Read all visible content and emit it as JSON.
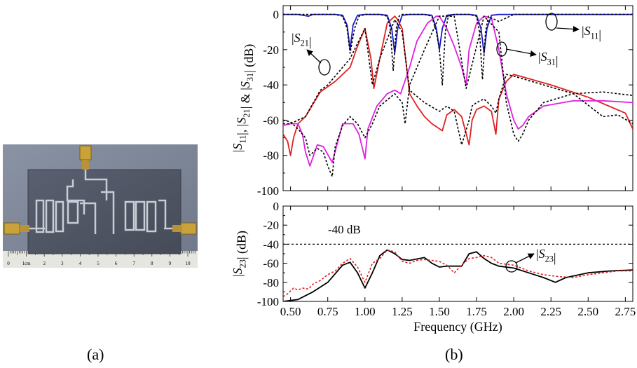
{
  "captions": {
    "a": "(a)",
    "b": "(b)"
  },
  "photo": {
    "ruler_labels": [
      "0",
      "1cm",
      "2",
      "3",
      "4",
      "5",
      "6",
      "7",
      "8",
      "9",
      "10"
    ]
  },
  "chart_data": [
    {
      "type": "line",
      "ylabel": "|S11|, |S21| & |S31| (dB)",
      "xlim": [
        0.45,
        2.8
      ],
      "ylim": [
        -100,
        5
      ],
      "yticks": [
        0,
        -20,
        -40,
        -60,
        -80,
        -100
      ],
      "xticks": [
        0.5,
        0.75,
        1.0,
        1.25,
        1.5,
        1.75,
        2.0,
        2.25,
        2.5,
        2.75
      ],
      "annotations": [
        "|S21|",
        "|S31|",
        "|S11|"
      ],
      "colors": {
        "s11": "#1a1acc",
        "s21": "#e02020",
        "s31": "#e020e0",
        "measured": "#000000"
      },
      "series": [
        {
          "id": "s11",
          "x": [
            0.45,
            0.55,
            0.62,
            0.65,
            0.7,
            0.8,
            0.85,
            0.88,
            0.9,
            0.92,
            0.95,
            1.0,
            1.1,
            1.15,
            1.18,
            1.2,
            1.22,
            1.25,
            1.3,
            1.4,
            1.45,
            1.48,
            1.5,
            1.52,
            1.55,
            1.6,
            1.7,
            1.75,
            1.78,
            1.8,
            1.82,
            1.85,
            1.9,
            2.0,
            2.8
          ],
          "y": [
            0,
            0,
            -1,
            0,
            0,
            0,
            -0.5,
            -6,
            -20,
            -6,
            -0.5,
            0,
            0,
            -0.5,
            -8,
            -22,
            -8,
            -0.5,
            0,
            0,
            -0.5,
            -8,
            -20,
            -8,
            -0.5,
            0,
            0,
            -0.5,
            -8,
            -22,
            -8,
            -0.5,
            0,
            0,
            0
          ]
        },
        {
          "id": "s21",
          "x": [
            0.45,
            0.48,
            0.5,
            0.52,
            0.55,
            0.6,
            0.7,
            0.8,
            0.9,
            0.95,
            1.0,
            1.04,
            1.06,
            1.1,
            1.15,
            1.2,
            1.22,
            1.25,
            1.3,
            1.35,
            1.4,
            1.45,
            1.52,
            1.55,
            1.6,
            1.65,
            1.7,
            1.72,
            1.75,
            1.8,
            1.85,
            1.88,
            1.9,
            1.95,
            2.0,
            2.25,
            2.5,
            2.75,
            2.8
          ],
          "y": [
            -68,
            -72,
            -80,
            -70,
            -62,
            -58,
            -44,
            -38,
            -30,
            -18,
            -8,
            -25,
            -42,
            -25,
            -5,
            -1,
            -3,
            -8,
            -45,
            -52,
            -58,
            -62,
            -66,
            -57,
            -54,
            -58,
            -74,
            -60,
            -54,
            -52,
            -55,
            -68,
            -48,
            -38,
            -34,
            -40,
            -47,
            -56,
            -65
          ]
        },
        {
          "id": "s31",
          "x": [
            0.45,
            0.5,
            0.55,
            0.58,
            0.6,
            0.63,
            0.68,
            0.72,
            0.78,
            0.85,
            0.92,
            0.96,
            1.0,
            1.02,
            1.08,
            1.15,
            1.2,
            1.24,
            1.3,
            1.35,
            1.42,
            1.48,
            1.5,
            1.55,
            1.6,
            1.65,
            1.68,
            1.7,
            1.75,
            1.8,
            1.85,
            1.9,
            1.95,
            2.0,
            2.03,
            2.06,
            2.1,
            2.2,
            2.4,
            2.6,
            2.8
          ],
          "y": [
            -63,
            -62,
            -62,
            -68,
            -78,
            -86,
            -74,
            -75,
            -84,
            -62,
            -62,
            -68,
            -82,
            -65,
            -52,
            -45,
            -43,
            -45,
            -30,
            -15,
            -5,
            -1,
            -1,
            -8,
            -18,
            -30,
            -40,
            -20,
            -5,
            -1,
            -2,
            -20,
            -45,
            -60,
            -65,
            -63,
            -58,
            -52,
            -49,
            -49,
            -50
          ]
        },
        {
          "id": "s11_meas",
          "dashed": true,
          "x": [
            0.45,
            0.7,
            0.8,
            0.85,
            0.88,
            0.9,
            0.93,
            0.96,
            1.0,
            1.1,
            1.15,
            1.17,
            1.19,
            1.21,
            1.23,
            1.25,
            1.3,
            1.4,
            1.45,
            1.48,
            1.5,
            1.52,
            1.54,
            1.56,
            1.6,
            1.7,
            1.75,
            1.77,
            1.79,
            1.81,
            1.83,
            1.85,
            1.9,
            2.0,
            2.8
          ],
          "y": [
            0,
            0,
            0,
            -1,
            -8,
            -22,
            -8,
            -1,
            0,
            0,
            -1,
            -8,
            -32,
            -8,
            -1,
            0,
            0,
            0,
            -1,
            -10,
            -20,
            -40,
            -10,
            -1,
            0,
            0,
            -1,
            -10,
            -37,
            -10,
            -1,
            -2,
            -4,
            0,
            0
          ]
        },
        {
          "id": "s21_meas",
          "dashed": true,
          "x": [
            0.45,
            0.5,
            0.55,
            0.6,
            0.7,
            0.75,
            0.8,
            0.9,
            1.0,
            1.05,
            1.1,
            1.2,
            1.25,
            1.3,
            1.4,
            1.5,
            1.55,
            1.6,
            1.65,
            1.7,
            1.72,
            1.75,
            1.8,
            1.85,
            1.88,
            1.9,
            1.95,
            2.0,
            2.2,
            2.4,
            2.6,
            2.7,
            2.8
          ],
          "y": [
            -62,
            -62,
            -60,
            -58,
            -43,
            -40,
            -35,
            -25,
            -8,
            -40,
            -25,
            -3,
            -10,
            -43,
            -50,
            -55,
            -52,
            -55,
            -74,
            -60,
            -52,
            -50,
            -48,
            -52,
            -56,
            -48,
            -34,
            -35,
            -40,
            -45,
            -58,
            -57,
            -62
          ]
        },
        {
          "id": "s31_meas",
          "dashed": true,
          "x": [
            0.45,
            0.5,
            0.55,
            0.6,
            0.63,
            0.68,
            0.72,
            0.75,
            0.78,
            0.8,
            0.85,
            0.9,
            0.95,
            1.0,
            1.05,
            1.1,
            1.2,
            1.25,
            1.27,
            1.3,
            1.4,
            1.5,
            1.6,
            1.68,
            1.8,
            1.9,
            1.95,
            2.0,
            2.03,
            2.06,
            2.1,
            2.2,
            2.4,
            2.6,
            2.7,
            2.8
          ],
          "y": [
            -60,
            -61,
            -65,
            -70,
            -80,
            -76,
            -78,
            -86,
            -92,
            -75,
            -63,
            -58,
            -62,
            -70,
            -62,
            -52,
            -45,
            -50,
            -62,
            -40,
            -20,
            -1,
            -1,
            -42,
            -1,
            -10,
            -50,
            -68,
            -72,
            -68,
            -60,
            -50,
            -45,
            -44,
            -45,
            -46
          ]
        }
      ]
    },
    {
      "type": "line",
      "xlabel": "Frequency (GHz)",
      "ylabel": "|S23| (dB)",
      "xlim": [
        0.45,
        2.8
      ],
      "ylim": [
        -100,
        0
      ],
      "yticks": [
        0,
        -20,
        -40,
        -60,
        -80,
        -100
      ],
      "xticks": [
        0.5,
        0.75,
        1.0,
        1.25,
        1.5,
        1.75,
        2.0,
        2.25,
        2.5,
        2.75
      ],
      "xtick_labels": [
        "0.50",
        "0.75",
        "1.00",
        "1.25",
        "1.50",
        "1.75",
        "2.00",
        "2.25",
        "2.50",
        "2.75"
      ],
      "annotations": [
        "-40 dB",
        "|S23|"
      ],
      "reference_line": -40,
      "colors": {
        "simulated": "#000000",
        "measured": "#e02020"
      },
      "series": [
        {
          "id": "s23_sim",
          "x": [
            0.45,
            0.55,
            0.65,
            0.75,
            0.85,
            0.9,
            0.95,
            1.0,
            1.05,
            1.1,
            1.15,
            1.2,
            1.25,
            1.3,
            1.4,
            1.45,
            1.5,
            1.55,
            1.6,
            1.65,
            1.7,
            1.75,
            1.8,
            1.85,
            1.9,
            2.0,
            2.1,
            2.2,
            2.28,
            2.35,
            2.5,
            2.65,
            2.8
          ],
          "y": [
            -100,
            -98,
            -90,
            -80,
            -62,
            -59,
            -70,
            -86,
            -70,
            -52,
            -46,
            -50,
            -56,
            -57,
            -54,
            -60,
            -64,
            -63,
            -63,
            -63,
            -50,
            -48,
            -55,
            -60,
            -63,
            -65,
            -70,
            -75,
            -80,
            -75,
            -70,
            -68,
            -67
          ]
        },
        {
          "id": "s23_meas",
          "dashed": true,
          "x": [
            0.45,
            0.48,
            0.52,
            0.55,
            0.58,
            0.62,
            0.65,
            0.7,
            0.75,
            0.8,
            0.85,
            0.9,
            0.95,
            1.0,
            1.05,
            1.1,
            1.15,
            1.2,
            1.25,
            1.3,
            1.35,
            1.4,
            1.45,
            1.5,
            1.55,
            1.6,
            1.65,
            1.7,
            1.75,
            1.8,
            1.85,
            1.9,
            2.0,
            2.1,
            2.2,
            2.3,
            2.4,
            2.5,
            2.6,
            2.7,
            2.8
          ],
          "y": [
            -95,
            -92,
            -86,
            -88,
            -86,
            -87,
            -82,
            -78,
            -72,
            -68,
            -60,
            -55,
            -64,
            -80,
            -60,
            -55,
            -46,
            -48,
            -58,
            -60,
            -57,
            -56,
            -57,
            -58,
            -62,
            -70,
            -62,
            -55,
            -54,
            -52,
            -54,
            -60,
            -62,
            -68,
            -72,
            -74,
            -75,
            -72,
            -70,
            -68,
            -68
          ]
        }
      ]
    }
  ]
}
